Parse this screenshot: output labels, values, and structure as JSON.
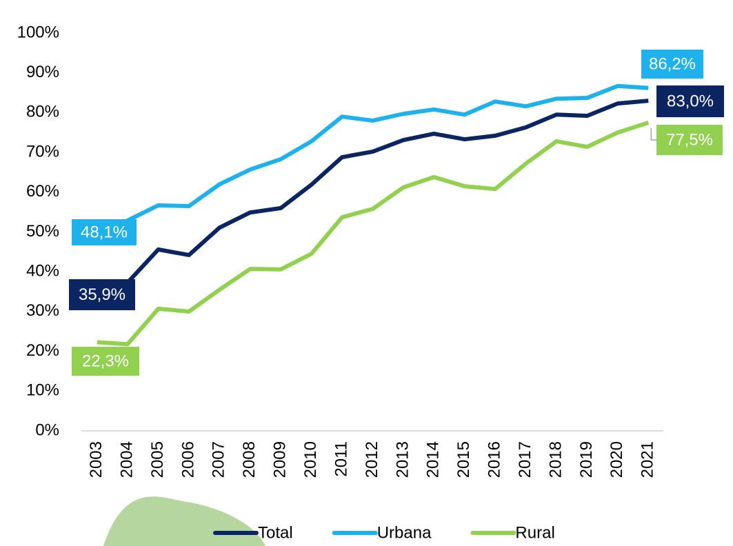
{
  "chart_data": {
    "type": "line",
    "categories": [
      "2003",
      "2004",
      "2005",
      "2006",
      "2007",
      "2008",
      "2009",
      "2010",
      "2011",
      "2012",
      "2013",
      "2014",
      "2015",
      "2016",
      "2017",
      "2018",
      "2019",
      "2020",
      "2021"
    ],
    "series": [
      {
        "name": "Total",
        "color": "#0b2462",
        "values": [
          35.9,
          37.3,
          45.6,
          44.2,
          51.1,
          54.9,
          56.0,
          61.9,
          68.8,
          70.2,
          73.1,
          74.7,
          73.3,
          74.2,
          76.3,
          79.5,
          79.2,
          82.3,
          83.0
        ],
        "value_labels": [
          "35,9%",
          null,
          null,
          null,
          null,
          null,
          null,
          null,
          null,
          null,
          null,
          null,
          null,
          null,
          null,
          null,
          null,
          null,
          "83,0%"
        ]
      },
      {
        "name": "Urbana",
        "color": "#1eb1ec",
        "values": [
          48.1,
          52.9,
          56.7,
          56.5,
          62.0,
          65.7,
          68.3,
          72.8,
          79.0,
          78.0,
          79.7,
          80.8,
          79.5,
          82.8,
          81.6,
          83.5,
          83.7,
          86.7,
          86.2
        ],
        "value_labels": [
          "48,1%",
          null,
          null,
          null,
          null,
          null,
          null,
          null,
          null,
          null,
          null,
          null,
          null,
          null,
          null,
          null,
          null,
          null,
          "86,2%"
        ]
      },
      {
        "name": "Rural",
        "color": "#92d050",
        "values": [
          22.3,
          21.8,
          30.7,
          30.0,
          35.5,
          40.7,
          40.6,
          44.5,
          53.7,
          55.8,
          61.2,
          63.8,
          61.5,
          60.8,
          67.2,
          72.8,
          71.4,
          75.0,
          77.5
        ],
        "value_labels": [
          "22,3%",
          null,
          null,
          null,
          null,
          null,
          null,
          null,
          null,
          null,
          null,
          null,
          null,
          null,
          null,
          null,
          null,
          null,
          "77,5%"
        ]
      }
    ],
    "ylim": [
      0,
      100
    ],
    "yticks": [
      {
        "value": 0,
        "label": "0%"
      },
      {
        "value": 10,
        "label": "10%"
      },
      {
        "value": 20,
        "label": "20%"
      },
      {
        "value": 30,
        "label": "30%"
      },
      {
        "value": 40,
        "label": "40%"
      },
      {
        "value": 50,
        "label": "50%"
      },
      {
        "value": 60,
        "label": "60%"
      },
      {
        "value": 70,
        "label": "70%"
      },
      {
        "value": 80,
        "label": "80%"
      },
      {
        "value": 90,
        "label": "90%"
      },
      {
        "value": 100,
        "label": "100%"
      }
    ],
    "grid": false,
    "legend": "bottom"
  }
}
